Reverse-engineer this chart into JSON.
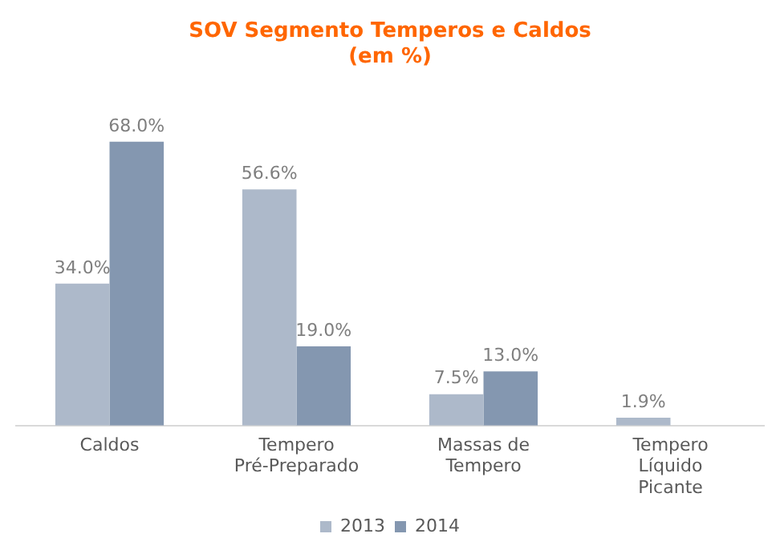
{
  "chart_data": {
    "type": "bar",
    "title": "SOV Segmento Temperos e Caldos\n(em %)",
    "categories": [
      "Caldos",
      "Tempero Pré-Preparado",
      "Massas de Tempero",
      "Tempero Líquido Picante"
    ],
    "series": [
      {
        "name": "2013",
        "color": "#adb9ca",
        "values": [
          34.0,
          56.6,
          7.5,
          1.9
        ],
        "value_labels": [
          "34.0%",
          "56.6%",
          "7.5%",
          "1.9%"
        ]
      },
      {
        "name": "2014",
        "color": "#8497b0",
        "values": [
          68.0,
          19.0,
          13.0,
          null
        ],
        "value_labels": [
          "68.0%",
          "19.0%",
          "13.0%",
          null
        ]
      }
    ],
    "legend": "bottom",
    "grid": false
  }
}
